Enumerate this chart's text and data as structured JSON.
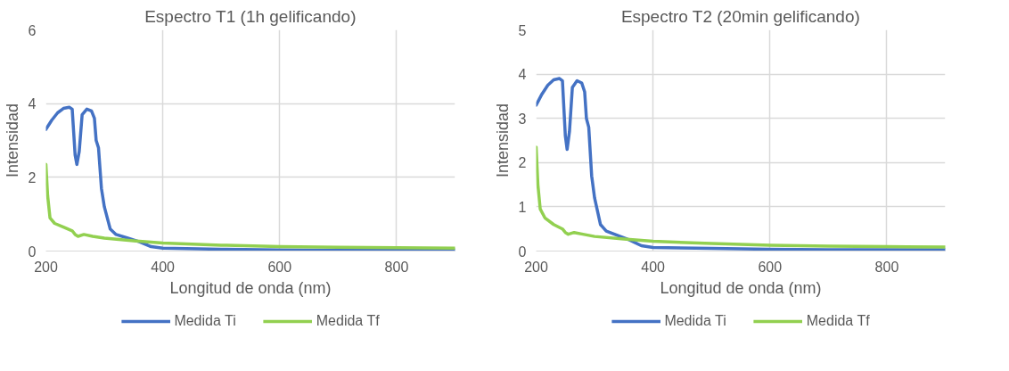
{
  "chart_data": [
    {
      "type": "line",
      "title": "Espectro T1 (1h gelificando)",
      "xlabel": "Longitud de onda (nm)",
      "ylabel": "Intensidad",
      "xlim": [
        200,
        900
      ],
      "xticks": [
        200,
        400,
        600,
        800
      ],
      "ylim": [
        0,
        6
      ],
      "yticks": [
        0,
        2,
        4,
        6
      ],
      "grid": true,
      "legend": "bottom",
      "series": [
        {
          "name": "Medida Ti",
          "color": "#4472c4",
          "x": [
            200,
            210,
            220,
            230,
            240,
            245,
            250,
            253,
            257,
            262,
            270,
            278,
            283,
            286,
            290,
            295,
            300,
            310,
            320,
            340,
            360,
            380,
            400,
            500,
            600,
            700,
            800,
            900
          ],
          "values": [
            3.3,
            3.55,
            3.75,
            3.87,
            3.9,
            3.85,
            2.6,
            2.35,
            2.7,
            3.7,
            3.85,
            3.8,
            3.6,
            3.0,
            2.8,
            1.7,
            1.2,
            0.6,
            0.45,
            0.35,
            0.25,
            0.12,
            0.08,
            0.05,
            0.03,
            0.02,
            0.02,
            0.03
          ]
        },
        {
          "name": "Medida Tf",
          "color": "#92d050",
          "x": [
            200,
            203,
            207,
            215,
            230,
            245,
            250,
            255,
            265,
            280,
            300,
            350,
            400,
            500,
            600,
            700,
            800,
            900
          ],
          "values": [
            2.35,
            1.5,
            0.9,
            0.75,
            0.65,
            0.55,
            0.45,
            0.4,
            0.45,
            0.4,
            0.35,
            0.28,
            0.22,
            0.16,
            0.12,
            0.1,
            0.09,
            0.08
          ]
        }
      ]
    },
    {
      "type": "line",
      "title": "Espectro T2 (20min gelificando)",
      "xlabel": "Longitud de onda (nm)",
      "ylabel": "Intensidad",
      "xlim": [
        200,
        900
      ],
      "xticks": [
        200,
        400,
        600,
        800
      ],
      "ylim": [
        0,
        5
      ],
      "yticks": [
        0,
        1,
        2,
        3,
        4,
        5
      ],
      "grid": true,
      "legend": "bottom",
      "series": [
        {
          "name": "Medida Ti",
          "color": "#4472c4",
          "x": [
            200,
            210,
            220,
            230,
            240,
            245,
            250,
            253,
            257,
            262,
            270,
            278,
            283,
            286,
            290,
            295,
            300,
            310,
            320,
            340,
            360,
            380,
            400,
            500,
            600,
            700,
            800,
            900
          ],
          "values": [
            3.3,
            3.55,
            3.75,
            3.87,
            3.9,
            3.85,
            2.6,
            2.3,
            2.7,
            3.7,
            3.85,
            3.8,
            3.6,
            3.0,
            2.8,
            1.7,
            1.2,
            0.6,
            0.45,
            0.35,
            0.25,
            0.12,
            0.08,
            0.06,
            0.04,
            0.03,
            0.03,
            0.03
          ]
        },
        {
          "name": "Medida Tf",
          "color": "#92d050",
          "x": [
            200,
            203,
            207,
            215,
            230,
            245,
            250,
            255,
            265,
            280,
            300,
            350,
            400,
            500,
            600,
            700,
            800,
            900
          ],
          "values": [
            2.35,
            1.5,
            0.95,
            0.75,
            0.6,
            0.5,
            0.42,
            0.38,
            0.42,
            0.38,
            0.33,
            0.27,
            0.22,
            0.17,
            0.13,
            0.11,
            0.1,
            0.09
          ]
        }
      ]
    }
  ]
}
